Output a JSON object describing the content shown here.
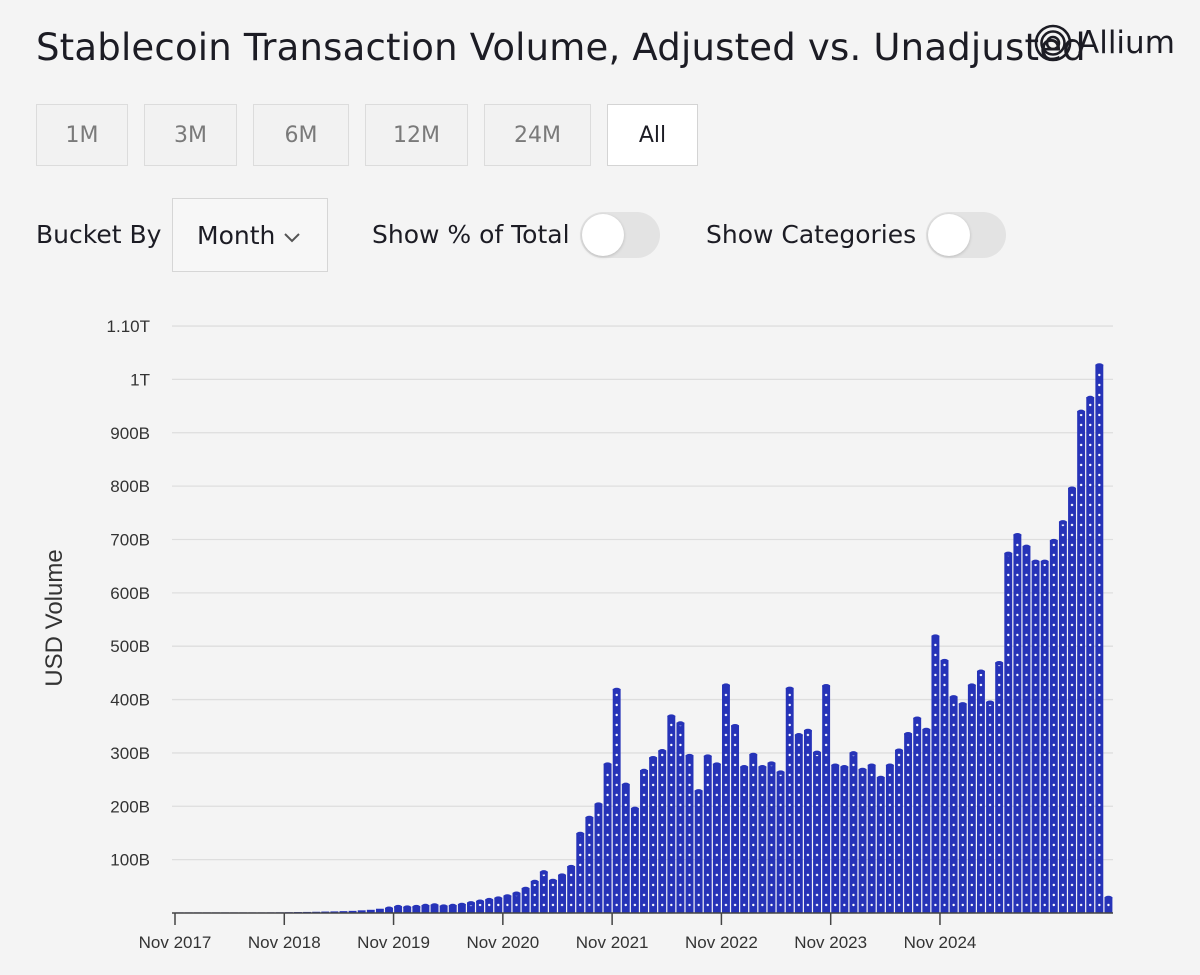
{
  "title": "Stablecoin Transaction Volume, Adjusted vs. Unadjusted",
  "logo": {
    "text": "Allium",
    "icon": "allium-rings-icon"
  },
  "ranges": [
    "1M",
    "3M",
    "6M",
    "12M",
    "24M",
    "All"
  ],
  "active_range": "All",
  "controls": {
    "bucket_label": "Bucket By",
    "bucket_value": "Month",
    "show_pct_label": "Show % of Total",
    "show_pct_on": false,
    "show_categories_label": "Show Categories",
    "show_categories_on": false
  },
  "colors": {
    "bar": "#2633b8",
    "dot": "#ffffff",
    "grid": "#dedede",
    "text": "#333333"
  },
  "chart_data": {
    "type": "bar",
    "ylabel": "USD Volume",
    "ylim": [
      0,
      1100000000000
    ],
    "ytick_values": [
      100000000000,
      200000000000,
      300000000000,
      400000000000,
      500000000000,
      600000000000,
      700000000000,
      800000000000,
      900000000000,
      1000000000000,
      1100000000000
    ],
    "ytick_labels": [
      "100B",
      "200B",
      "300B",
      "400B",
      "500B",
      "600B",
      "700B",
      "800B",
      "900B",
      "1T",
      "1.10T"
    ],
    "xtick_labels": [
      "Nov 2017",
      "Nov 2018",
      "Nov 2019",
      "Nov 2020",
      "Nov 2021",
      "Nov 2022",
      "Nov 2023",
      "Nov 2024"
    ],
    "grid": true,
    "legend": "none",
    "series": [
      {
        "unit": "B",
        "values": [
          0.3,
          0.4,
          0.5,
          0.6,
          0.7,
          0.8,
          0.9,
          1,
          1,
          1.1,
          1.2,
          1.3,
          1.5,
          1.8,
          2,
          2.3,
          2.7,
          3,
          3.5,
          4,
          5,
          6,
          8,
          10,
          13,
          12,
          13,
          15,
          16,
          14,
          15,
          17,
          20,
          23,
          26,
          29,
          33,
          38,
          47,
          60,
          78,
          62,
          72,
          88,
          150,
          180,
          205,
          280,
          420,
          242,
          197,
          268,
          292,
          305,
          370,
          357,
          296,
          230,
          295,
          280,
          428,
          352,
          275,
          298,
          275,
          282,
          265,
          422,
          335,
          343,
          302,
          427,
          278,
          275,
          301,
          270,
          278,
          255,
          278,
          306,
          337,
          366,
          345,
          520,
          474,
          406,
          393,
          428,
          454,
          396,
          470,
          675,
          710,
          688,
          660,
          660,
          699,
          734,
          797,
          941,
          967,
          1028,
          30
        ]
      }
    ]
  }
}
